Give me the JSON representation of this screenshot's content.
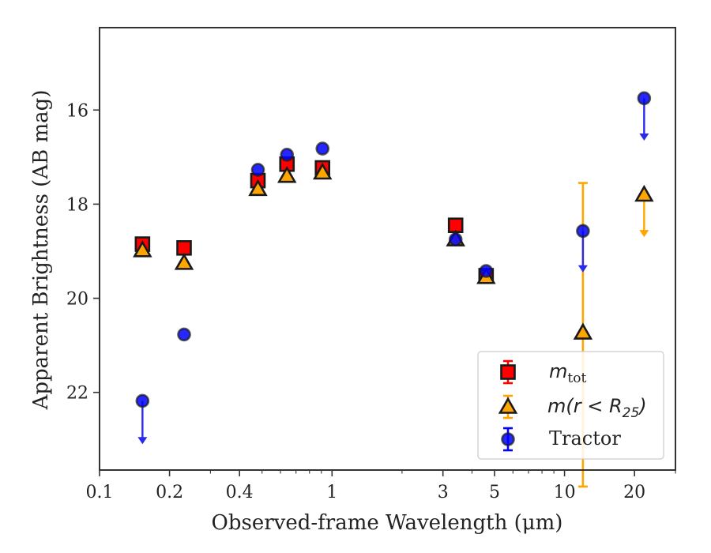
{
  "colors": {
    "mtot": "#ff0000",
    "r25": "#ffa500",
    "tractor": "#0000ff",
    "tractor_err": "#2a2aee",
    "edge": "#1a1a1a",
    "legend_edge": "#cccccc"
  },
  "chart_data": {
    "type": "scatter",
    "xlabel": "Observed-frame Wavelength (μm)",
    "ylabel": "Apparent Brightness (AB mag)",
    "xscale": "log",
    "xlim": [
      0.1,
      30
    ],
    "ylim": [
      23.65,
      14.25
    ],
    "x_ticks": [
      {
        "value": 0.1,
        "label": "0.1"
      },
      {
        "value": 0.2,
        "label": "0.2"
      },
      {
        "value": 0.4,
        "label": "0.4"
      },
      {
        "value": 1,
        "label": "1"
      },
      {
        "value": 3,
        "label": "3"
      },
      {
        "value": 5,
        "label": "5"
      },
      {
        "value": 10,
        "label": "10"
      },
      {
        "value": 20,
        "label": "20"
      }
    ],
    "y_ticks": [
      {
        "value": 16,
        "label": "16"
      },
      {
        "value": 18,
        "label": "18"
      },
      {
        "value": 20,
        "label": "20"
      },
      {
        "value": 22,
        "label": "22"
      }
    ],
    "legend_position": "lower right",
    "series": [
      {
        "name": "m_tot",
        "legend_main": "m",
        "legend_sub": "tot",
        "marker": "square",
        "color_key": "mtot",
        "points": [
          {
            "x": 0.153,
            "y": 18.85
          },
          {
            "x": 0.231,
            "y": 18.93
          },
          {
            "x": 0.48,
            "y": 17.5
          },
          {
            "x": 0.64,
            "y": 17.15
          },
          {
            "x": 0.91,
            "y": 17.23
          },
          {
            "x": 3.4,
            "y": 18.45
          },
          {
            "x": 4.6,
            "y": 19.52
          }
        ]
      },
      {
        "name": "m(r < R25)",
        "legend_main": "m(r < R",
        "legend_sub": "25",
        "legend_close": ")",
        "marker": "triangle",
        "color_key": "r25",
        "points": [
          {
            "x": 0.153,
            "y": 18.98
          },
          {
            "x": 0.231,
            "y": 19.25
          },
          {
            "x": 0.48,
            "y": 17.68
          },
          {
            "x": 0.64,
            "y": 17.4
          },
          {
            "x": 0.91,
            "y": 17.33
          },
          {
            "x": 3.4,
            "y": 18.75
          },
          {
            "x": 4.6,
            "y": 19.55
          },
          {
            "x": 12,
            "y": 20.73,
            "err": [
              17.55,
              24.0
            ]
          },
          {
            "x": 22,
            "y": 17.8,
            "upper_limit_to": 18.7
          }
        ]
      },
      {
        "name": "Tractor",
        "legend_main": "Tractor",
        "marker": "circle",
        "color_key": "tractor",
        "points": [
          {
            "x": 0.153,
            "y": 22.18,
            "upper_limit_to": 23.1
          },
          {
            "x": 0.231,
            "y": 20.77
          },
          {
            "x": 0.48,
            "y": 17.27
          },
          {
            "x": 0.64,
            "y": 16.95
          },
          {
            "x": 0.91,
            "y": 16.82
          },
          {
            "x": 3.4,
            "y": 18.75
          },
          {
            "x": 4.6,
            "y": 19.42
          },
          {
            "x": 12,
            "y": 18.57,
            "upper_limit_to": 19.45
          },
          {
            "x": 22,
            "y": 15.75,
            "upper_limit_to": 16.65
          }
        ]
      }
    ]
  }
}
